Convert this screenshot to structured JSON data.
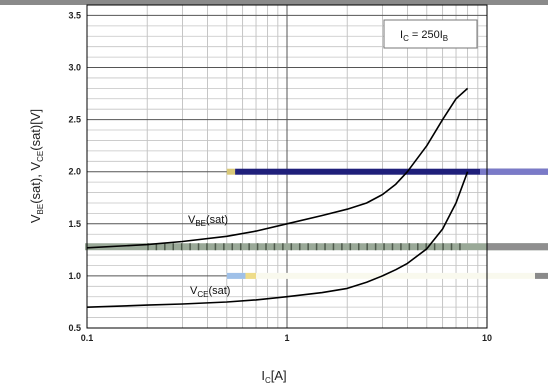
{
  "chart_data": {
    "type": "line",
    "title": "",
    "xlabel": {
      "main": "I",
      "sub": "C",
      "tail": "[A]"
    },
    "ylabel": {
      "p1": "V",
      "s1": "BE",
      "p2": "(sat), V",
      "s2": "CE",
      "p3": "(sat)[V]"
    },
    "x_scale": "log",
    "xlim": [
      0.1,
      10
    ],
    "ylim": [
      0.5,
      3.6
    ],
    "x_ticks": [
      "0.1",
      "1",
      "10"
    ],
    "y_ticks": [
      "0.5",
      "1.0",
      "1.5",
      "2.0",
      "2.5",
      "3.0",
      "3.5"
    ],
    "grid": true,
    "annotation": {
      "p1": "I",
      "s1": "C",
      "p2": " = 250I",
      "s2": "B"
    },
    "series": [
      {
        "name": {
          "main": "V",
          "sub": "BE",
          "tail": "(sat)"
        },
        "x": [
          0.1,
          0.2,
          0.3,
          0.5,
          0.7,
          1.0,
          1.5,
          2.0,
          2.5,
          3.0,
          3.5,
          4.0,
          5.0,
          6.0,
          7.0,
          8.0
        ],
        "y": [
          1.27,
          1.3,
          1.33,
          1.38,
          1.43,
          1.5,
          1.58,
          1.64,
          1.7,
          1.78,
          1.88,
          2.0,
          2.25,
          2.5,
          2.7,
          2.8
        ]
      },
      {
        "name": {
          "main": "V",
          "sub": "CE",
          "tail": "(sat)"
        },
        "x": [
          0.1,
          0.2,
          0.3,
          0.5,
          0.7,
          1.0,
          1.5,
          2.0,
          2.5,
          3.0,
          3.5,
          4.0,
          5.0,
          6.0,
          7.0,
          8.0
        ],
        "y": [
          0.7,
          0.72,
          0.73,
          0.75,
          0.77,
          0.8,
          0.84,
          0.88,
          0.94,
          1.0,
          1.06,
          1.12,
          1.26,
          1.45,
          1.7,
          2.0
        ]
      }
    ]
  }
}
